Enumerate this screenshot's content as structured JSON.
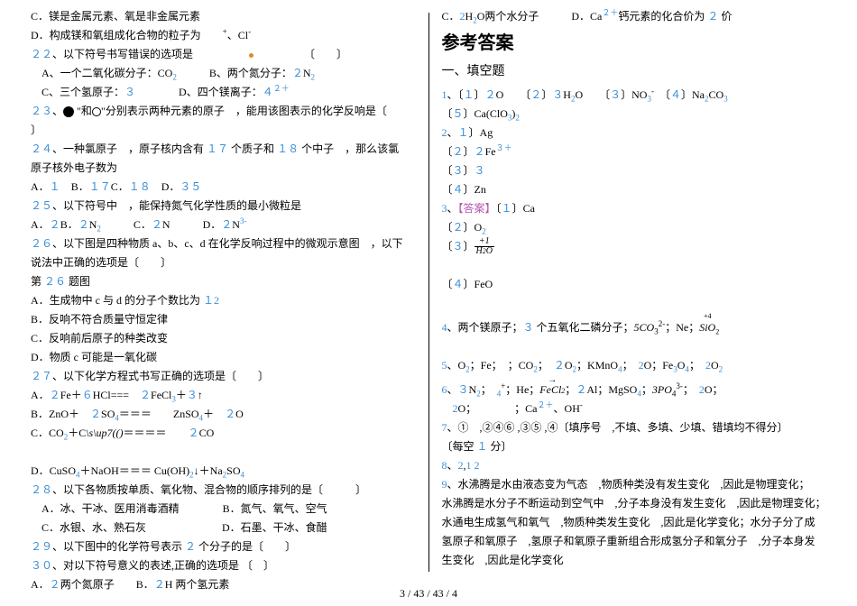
{
  "footer": "3 / 43 / 43 / 4",
  "left": {
    "lines": [
      "C．镁是金属元素、氧是非金属元素",
      "D．构成镁和氧组成化合物的粒子为　　<sup>+</sup>、Cl<sup>-</sup>",
      "<span class='hl'>２２</span>、以下符号书写错误的选项是　　　　　<span class='dot-orange'></span>　　　　　〔　　〕",
      "　A、一个二氧化碳分子：CO<span class='sub hl'>2</span>　　　B、两个氮分子：<span class='hl'>２</span>N<span class='sub hl'>2</span>",
      "　C、三个氢原子：<span class='hl'>３</span>　　　　D、四个镁离子：<span class='hl'>４</span><sup class='hl'>２＋</sup>",
      "<span class='hl'>２３</span>、<span class='ball'></span>&nbsp;\"和<span style='display:inline-block;width:10px;height:10px;border:1px solid #000;border-radius:50%;vertical-align:middle;'></span>\"分别表示两种元素的原子　，能用该图表示的化学反响是〔",
      "〕",
      "<span class='hl'>２４</span>、一种氯原子　，原子核内含有 <span class='hl'>１７</span> 个质子和 <span class='hl'>１８</span> 个中子　，那么该氯",
      "原子核外电子数为",
      "A．<span class='hl'>１</span>　B．<span class='hl'>１７</span>C．<span class='hl'>１８</span>　D．<span class='hl'>３５</span>",
      "<span class='hl'>２５</span>、以下符号中　，能保持氮气化学性质的最小微粒是",
      "A．<span class='hl'>２</span>B．<span class='hl'>２</span>N<span class='sub hl'>2</span>　　　C．<span class='hl'>２</span>N　　　D．<span class='hl'>２</span>N<sup class='hl'>3-</sup>",
      "<span class='hl'>２６</span>、以下图是四种物质 a、b、c、d 在化学反响过程中的微观示意图　，以下",
      "说法中正确的选项是〔　　〕",
      "第 <span class='hl'>２６</span> 题图",
      "A．生成物中 c 与 d 的分子个数比为 <span class='hl'>１2</span>",
      "B．反响不符合质量守恒定律",
      "C．反响前后原子的种类改变",
      "D．物质 c 可能是一氧化碳",
      "<span class='hl'>２７</span>、以下化学方程式书写正确的选项是〔　　〕",
      "A．<span class='hl'>２</span>Fe＋<span class='hl'>６</span>HCl===　<span class='hl'>２</span>FeCl<span class='sub hl'>3</span>＋<span class='hl'>３</span>↑",
      "B．ZnO＋　<span class='hl'>２</span>SO<span class='sub hl'>4</span>＝＝＝　　ZnSO<span class='sub hl'>4</span>＋　<span class='hl'>２</span>O",
      "C．CO<span class='sub hl'>2</span>＋C<span class='i'>\\s\\up7(()</span>＝＝＝＝　　<span class='hl'>２</span>CO",
      "&nbsp;",
      "D．CuSO<span class='sub hl'>4</span>＋NaOH＝＝＝ Cu(OH)<span class='sub hl'>2</span>↓＋Na<span class='sub hl'>2</span>SO<span class='sub hl'>4</span>",
      "<span class='hl'>２８</span>、以下各物质按单质、氧化物、混合物的顺序排列的是〔　　　〕",
      "　A．冰、干冰、医用消毒酒精　　　　B．氮气、氧气、空气",
      "　C．水银、水、熟石灰　　　　　　　D．石墨、干冰、食醋",
      "<span class='hl'>２９</span>、以下图中的化学符号表示 <span class='hl'>２</span> 个分子的是〔　　〕",
      "<span class='hl'>３０</span>、对以下符号意义的表述,正确的选项是 〔　〕",
      "A．<span class='hl'>２</span>两个氮原子　　B．<span class='hl'>２</span>H 两个氢元素"
    ]
  },
  "right": {
    "topLines": [
      "C．<span class='hl'>2</span>H<span class='sub hl'>2</span>O两个水分子　　　D．Ca<span class='sup hl'>２＋</span>钙元素的化合价为 <span class='hl'>２</span> 价"
    ],
    "h2": "参考答案",
    "h3": "一、填空题",
    "lines": [
      "<span class='hl'>1</span>、〔<span class='hl'>１</span>〕<span class='hl'>２</span>O　　〔<span class='hl'>２</span>〕<span class='hl'>３</span>H<span class='sub hl'>2</span>O　　〔<span class='hl'>３</span>〕NO<span class='sub hl'>3</span><sup>-</sup>　〔<span class='hl'>４</span>〕Na<span class='sub hl'>2</span>CO<span class='sub hl'>3</span>",
      "〔<span class='hl'>５</span>〕Ca(ClO<span class='sub hl'>3</span>)<span class='sub hl'>2</span>",
      "<span class='hl'>2</span>、<span class='hl'>１</span>〕Ag",
      "〔<span class='hl'>２</span>〕<span class='hl'>２</span>Fe<span class='sup hl'>３＋</span>",
      "〔<span class='hl'>３</span>〕<span class='hl'>３</span>",
      "〔<span class='hl'>４</span>〕Zn",
      "<span class='hl'>3</span>、<span class='mag'>【答案】</span>〔<span class='hl'>１</span>〕Ca",
      "〔<span class='hl'>２</span>〕O<span class='sub hl'>2</span>",
      "〔<span class='hl'>３</span>〕<span class='frac'><span class='num'>+1</span><span class='den'>H<span style='font-size:8px'>2</span>O</span></span>",
      "&nbsp;",
      "〔<span class='hl'>４</span>〕FeO",
      "&nbsp;",
      "<span class='hl'>4</span>、两个镁原子；<span class='hl'>３</span> 个五氧化二磷分子；<span class='i'>5CO</span><sub>3</sub><sup style='font-size:9px'>2-</sup>；Ne；<span class='topplus'>SiO</span><sub style='font-size:8px'>2</sub>",
      "&nbsp;",
      "<span class='hl'>5</span>、O<span class='sub hl'>2</span>；Fe；　；CO<span class='sub hl'>2</span>；　<span class='hl'>２</span>O<span class='sub hl'>2</span>；KMnO<span class='sub hl'>4</span>；　<span class='hl'>2</span>O；Fe<span class='sub hl'>3</span>O<span class='sub hl'>4</span>；　<span class='hl'>2</span>O<span class='sub hl'>2</span>",
      "<span class='hl'>6</span>、<span class='hl'>３</span>N<span class='sub hl'>2</span>；　<span class='sub hl'>4</span><sup>+</sup>；He；<span class='overarrow'>FeCl<span style='font-size:8px'>2</span></span>；<span class='hl'>２</span>Al；MgSO<span class='sub hl'>4</span>；<span class='i'>3PO</span><sub>4</sub><sup style='font-size:9px'>3-</sup>；　<span class='hl'>2</span>O；",
      "　<span class='hl'>2</span>O；　　　　；Ca<span class='sup hl'>２＋</span>、OH<sup>-</sup>",
      "<span class='hl'>7</span>、①　,②④⑥ ,③⑤ ,④〔填序号　,不填、多填、少填、错填均不得分〕",
      "〔每空 <span class='hl'>１</span> 分〕",
      "<span class='hl'>8</span>、<span class='hl'>2</span>,<span class='hl'>1 2</span>",
      "<span class='hl'>9</span>、水沸腾是水由液态变为气态　,物质种类没有发生变化　,因此是物理变化；",
      "水沸腾是水分子不断运动到空气中　,分子本身没有发生变化　,因此是物理变化；",
      "水通电生成氢气和氧气　,物质种类发生变化　,因此是化学变化；水分子分了成",
      "氢原子和氧原子　,氢原子和氧原子重新组合形成氢分子和氧分子　,分子本身发",
      "生变化　,因此是化学变化"
    ]
  }
}
